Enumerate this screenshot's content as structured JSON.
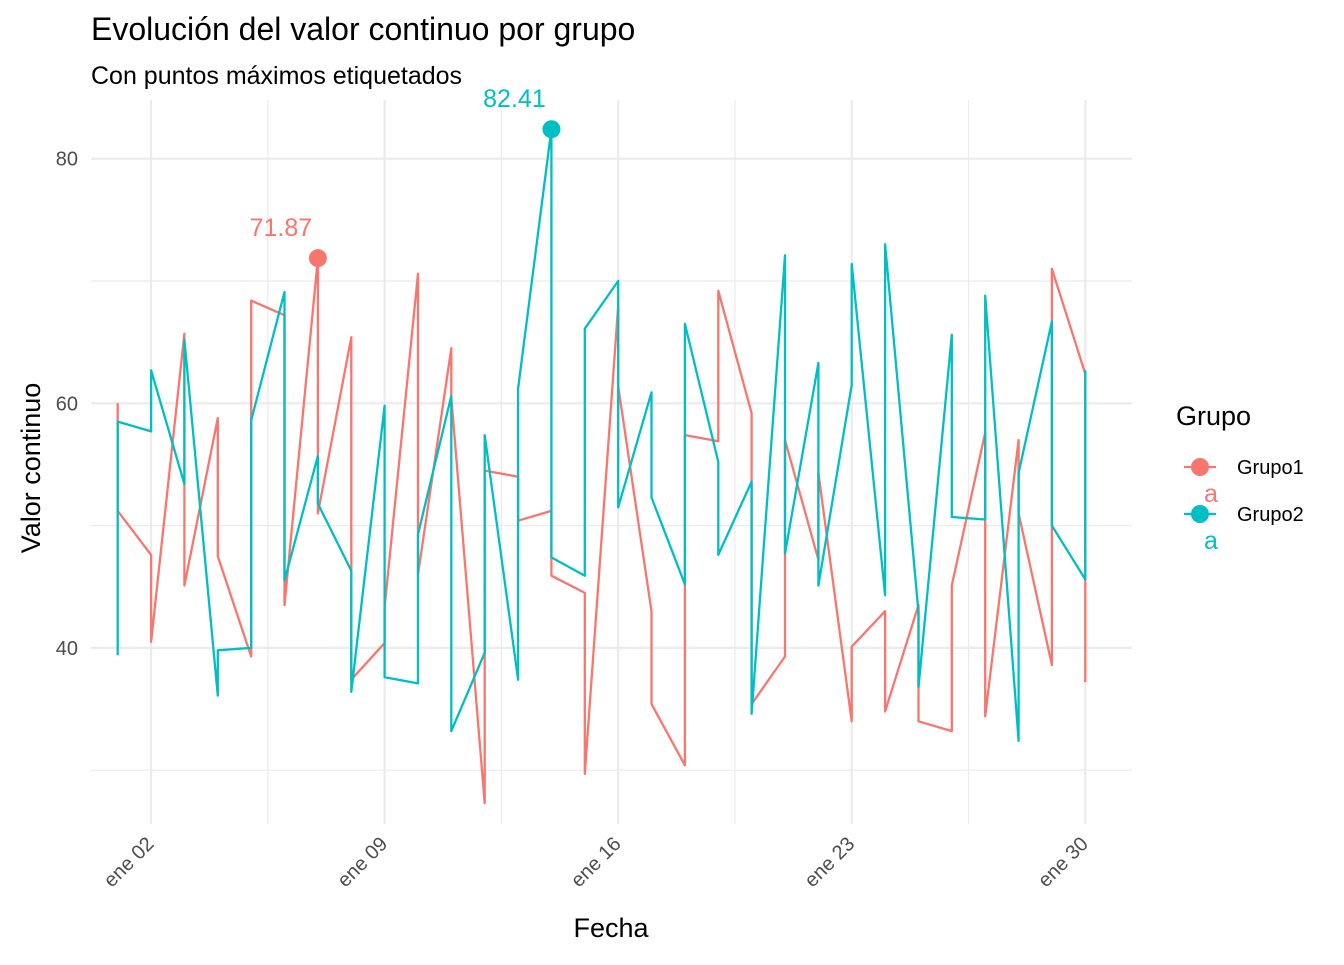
{
  "chart_data": {
    "type": "line",
    "title": "Evolución del valor continuo por grupo",
    "subtitle": "Con puntos máximos etiquetados",
    "xlabel": "Fecha",
    "ylabel": "Valor continuo",
    "x_ticks": [
      {
        "label": "ene 02",
        "day": 2
      },
      {
        "label": "ene 09",
        "day": 9
      },
      {
        "label": "ene 16",
        "day": 16
      },
      {
        "label": "ene 23",
        "day": 23
      },
      {
        "label": "ene 30",
        "day": 30
      }
    ],
    "y_ticks": [
      40,
      60,
      80
    ],
    "xlim": [
      0.2,
      31.4
    ],
    "ylim": [
      25.6,
      84.8
    ],
    "grid": true,
    "legend": {
      "title": "Grupo",
      "position": "right",
      "letter": "a"
    },
    "series": [
      {
        "name": "Grupo1",
        "color": "#F8766D",
        "points": [
          [
            1,
            60.0
          ],
          [
            1,
            51.2
          ],
          [
            2,
            47.6
          ],
          [
            2,
            40.5
          ],
          [
            3,
            65.7
          ],
          [
            3,
            45.1
          ],
          [
            4,
            58.8
          ],
          [
            4,
            47.5
          ],
          [
            5,
            39.3
          ],
          [
            5,
            68.4
          ],
          [
            6,
            67.2
          ],
          [
            6,
            43.5
          ],
          [
            7,
            71.87
          ],
          [
            7,
            51.0
          ],
          [
            8,
            65.4
          ],
          [
            8,
            37.4
          ],
          [
            9,
            40.4
          ],
          [
            9,
            43.3
          ],
          [
            10,
            70.6
          ],
          [
            10,
            46.0
          ],
          [
            11,
            64.5
          ],
          [
            11,
            60.5
          ],
          [
            12,
            27.3
          ],
          [
            12,
            54.5
          ],
          [
            13,
            54.0
          ],
          [
            13,
            50.4
          ],
          [
            14,
            51.2
          ],
          [
            14,
            45.9
          ],
          [
            15,
            44.5
          ],
          [
            15,
            29.7
          ],
          [
            16,
            68.0
          ],
          [
            16,
            61.4
          ],
          [
            17,
            43.0
          ],
          [
            17,
            35.4
          ],
          [
            18,
            30.4
          ],
          [
            18,
            57.4
          ],
          [
            19,
            56.9
          ],
          [
            19,
            69.2
          ],
          [
            20,
            59.2
          ],
          [
            20,
            35.4
          ],
          [
            21,
            39.3
          ],
          [
            21,
            57.0
          ],
          [
            22,
            47.2
          ],
          [
            22,
            54.3
          ],
          [
            23,
            34.0
          ],
          [
            23,
            40.1
          ],
          [
            24,
            43.0
          ],
          [
            24,
            34.8
          ],
          [
            25,
            43.5
          ],
          [
            25,
            34.0
          ],
          [
            26,
            33.2
          ],
          [
            26,
            45.1
          ],
          [
            27,
            57.6
          ],
          [
            27,
            34.4
          ],
          [
            28,
            57.0
          ],
          [
            28,
            51.0
          ],
          [
            29,
            38.6
          ],
          [
            29,
            71.0
          ],
          [
            30,
            62.4
          ],
          [
            30,
            37.2
          ]
        ],
        "max": {
          "day": 7,
          "value": 71.87,
          "label": "71.87"
        }
      },
      {
        "name": "Grupo2",
        "color": "#00BFC4",
        "points": [
          [
            1,
            39.4
          ],
          [
            1,
            58.5
          ],
          [
            2,
            57.7
          ],
          [
            2,
            62.7
          ],
          [
            3,
            53.4
          ],
          [
            3,
            65.2
          ],
          [
            4,
            36.1
          ],
          [
            4,
            39.8
          ],
          [
            5,
            40.0
          ],
          [
            5,
            58.6
          ],
          [
            6,
            69.1
          ],
          [
            6,
            45.5
          ],
          [
            7,
            55.7
          ],
          [
            7,
            51.8
          ],
          [
            8,
            46.3
          ],
          [
            8,
            36.4
          ],
          [
            9,
            59.8
          ],
          [
            9,
            37.6
          ],
          [
            10,
            37.1
          ],
          [
            10,
            49.3
          ],
          [
            11,
            60.6
          ],
          [
            11,
            33.2
          ],
          [
            12,
            39.6
          ],
          [
            12,
            57.4
          ],
          [
            13,
            37.4
          ],
          [
            13,
            61.2
          ],
          [
            14,
            82.41
          ],
          [
            14,
            47.4
          ],
          [
            15,
            45.9
          ],
          [
            15,
            66.1
          ],
          [
            16,
            70.0
          ],
          [
            16,
            51.5
          ],
          [
            17,
            60.9
          ],
          [
            17,
            52.3
          ],
          [
            18,
            45.2
          ],
          [
            18,
            66.5
          ],
          [
            19,
            55.2
          ],
          [
            19,
            47.6
          ],
          [
            20,
            53.6
          ],
          [
            20,
            34.6
          ],
          [
            21,
            72.1
          ],
          [
            21,
            47.7
          ],
          [
            22,
            63.3
          ],
          [
            22,
            45.1
          ],
          [
            23,
            61.5
          ],
          [
            23,
            71.4
          ],
          [
            24,
            44.3
          ],
          [
            24,
            73.0
          ],
          [
            25,
            42.9
          ],
          [
            25,
            36.8
          ],
          [
            26,
            65.6
          ],
          [
            26,
            50.7
          ],
          [
            27,
            50.5
          ],
          [
            27,
            68.8
          ],
          [
            28,
            32.4
          ],
          [
            28,
            54.3
          ],
          [
            29,
            66.7
          ],
          [
            29,
            50.0
          ],
          [
            30,
            45.6
          ],
          [
            30,
            62.7
          ]
        ],
        "max": {
          "day": 14,
          "value": 82.41,
          "label": "82.41"
        }
      }
    ]
  }
}
